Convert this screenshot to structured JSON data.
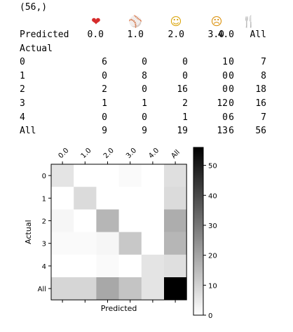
{
  "shape_output": "(56,)",
  "emoji_header": [
    {
      "name": "heart-emoji-icon",
      "glyph": "❤",
      "cls": "heart"
    },
    {
      "name": "baseball-emoji-icon",
      "glyph": "⚾",
      "cls": "ball"
    },
    {
      "name": "smile-emoji-icon",
      "glyph": "☺",
      "cls": "smile"
    },
    {
      "name": "disappointed-emoji-icon",
      "glyph": "☹",
      "cls": "sad"
    },
    {
      "name": "fork-knife-emoji-icon",
      "glyph": "🍴",
      "cls": "fork"
    }
  ],
  "crosstab": {
    "col_header_label": "Predicted",
    "columns": [
      "0.0",
      "1.0",
      "2.0",
      "3.0",
      "4.0",
      "All"
    ],
    "row_header_label": "Actual",
    "rows": [
      {
        "label": "0",
        "values": [
          "6",
          "0",
          "0",
          "1",
          "0",
          "7"
        ]
      },
      {
        "label": "1",
        "values": [
          "0",
          "8",
          "0",
          "0",
          "0",
          "8"
        ]
      },
      {
        "label": "2",
        "values": [
          "2",
          "0",
          "16",
          "0",
          "0",
          "18"
        ]
      },
      {
        "label": "3",
        "values": [
          "1",
          "1",
          "2",
          "12",
          "0",
          "16"
        ]
      },
      {
        "label": "4",
        "values": [
          "0",
          "0",
          "1",
          "0",
          "6",
          "7"
        ]
      },
      {
        "label": "All",
        "values": [
          "9",
          "9",
          "19",
          "13",
          "6",
          "56"
        ]
      }
    ]
  },
  "chart_data": {
    "type": "heatmap",
    "x_categories": [
      "0.0",
      "1.0",
      "2.0",
      "3.0",
      "4.0",
      "All"
    ],
    "y_categories": [
      "0",
      "1",
      "2",
      "3",
      "4",
      "All"
    ],
    "values": [
      [
        6,
        0,
        0,
        1,
        0,
        7
      ],
      [
        0,
        8,
        0,
        0,
        0,
        8
      ],
      [
        2,
        0,
        16,
        0,
        0,
        18
      ],
      [
        1,
        1,
        2,
        12,
        0,
        16
      ],
      [
        0,
        0,
        1,
        0,
        6,
        7
      ],
      [
        9,
        9,
        19,
        13,
        6,
        56
      ]
    ],
    "xlabel": "Predicted",
    "ylabel": "Actual",
    "colormap": "gray_r",
    "vmin": 0,
    "vmax": 56,
    "colorbar_ticks": [
      "0",
      "10",
      "20",
      "30",
      "40",
      "50"
    ]
  }
}
